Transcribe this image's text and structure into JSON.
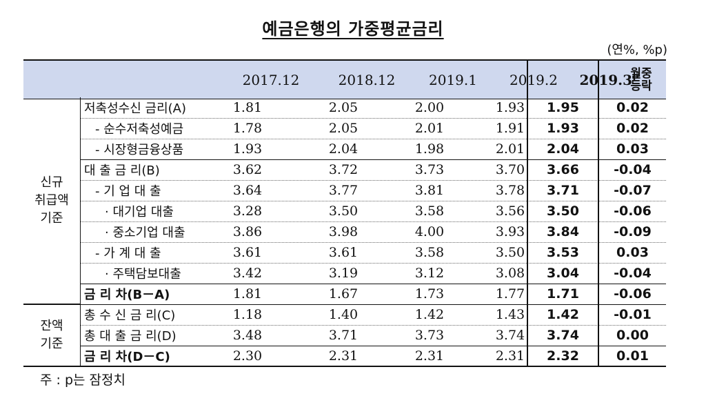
{
  "title": "예금은행의 가중평균금리",
  "unit": "(연%, %p)",
  "header": {
    "cols": [
      "2017.12",
      "2018.12",
      "2019.1",
      "2019.2"
    ],
    "current": "2019.3ᴾ",
    "change_line1": "월중",
    "change_line2": "등락"
  },
  "groups": {
    "new": [
      "신규",
      "취급액",
      "기준"
    ],
    "balance": [
      "잔액",
      "기준"
    ]
  },
  "rows": [
    {
      "label": "저축성수신 금리(A)",
      "v": [
        "1.81",
        "2.05",
        "2.00",
        "1.93"
      ],
      "cur": "1.95",
      "chg": "0.02"
    },
    {
      "label": " - 순수저축성예금",
      "v": [
        "1.78",
        "2.05",
        "2.01",
        "1.91"
      ],
      "cur": "1.93",
      "chg": "0.02"
    },
    {
      "label": " - 시장형금융상품",
      "v": [
        "1.93",
        "2.04",
        "1.98",
        "2.01"
      ],
      "cur": "2.04",
      "chg": "0.03"
    },
    {
      "label": "대 출 금 리(B)",
      "v": [
        "3.62",
        "3.72",
        "3.73",
        "3.70"
      ],
      "cur": "3.66",
      "chg": "-0.04"
    },
    {
      "label": " - 기 업 대 출",
      "v": [
        "3.64",
        "3.77",
        "3.81",
        "3.78"
      ],
      "cur": "3.71",
      "chg": "-0.07"
    },
    {
      "label": "  · 대기업 대출",
      "v": [
        "3.28",
        "3.50",
        "3.58",
        "3.56"
      ],
      "cur": "3.50",
      "chg": "-0.06"
    },
    {
      "label": "  · 중소기업 대출",
      "v": [
        "3.86",
        "3.98",
        "4.00",
        "3.93"
      ],
      "cur": "3.84",
      "chg": "-0.09"
    },
    {
      "label": " - 가 계 대 출",
      "v": [
        "3.61",
        "3.61",
        "3.58",
        "3.50"
      ],
      "cur": "3.53",
      "chg": "0.03"
    },
    {
      "label": "  · 주택담보대출",
      "v": [
        "3.42",
        "3.19",
        "3.12",
        "3.08"
      ],
      "cur": "3.04",
      "chg": "-0.04"
    },
    {
      "label": "금 리 차(B－A)",
      "v": [
        "1.81",
        "1.67",
        "1.73",
        "1.77"
      ],
      "cur": "1.71",
      "chg": "-0.06"
    },
    {
      "label": "총 수 신 금 리(C)",
      "v": [
        "1.18",
        "1.40",
        "1.42",
        "1.43"
      ],
      "cur": "1.42",
      "chg": "-0.01"
    },
    {
      "label": "총 대 출 금 리(D)",
      "v": [
        "3.48",
        "3.71",
        "3.73",
        "3.74"
      ],
      "cur": "3.74",
      "chg": "0.00"
    },
    {
      "label": "금 리 차(D－C)",
      "v": [
        "2.30",
        "2.31",
        "2.31",
        "2.31"
      ],
      "cur": "2.32",
      "chg": "0.01"
    }
  ],
  "note": "주 : p는 잠정치"
}
